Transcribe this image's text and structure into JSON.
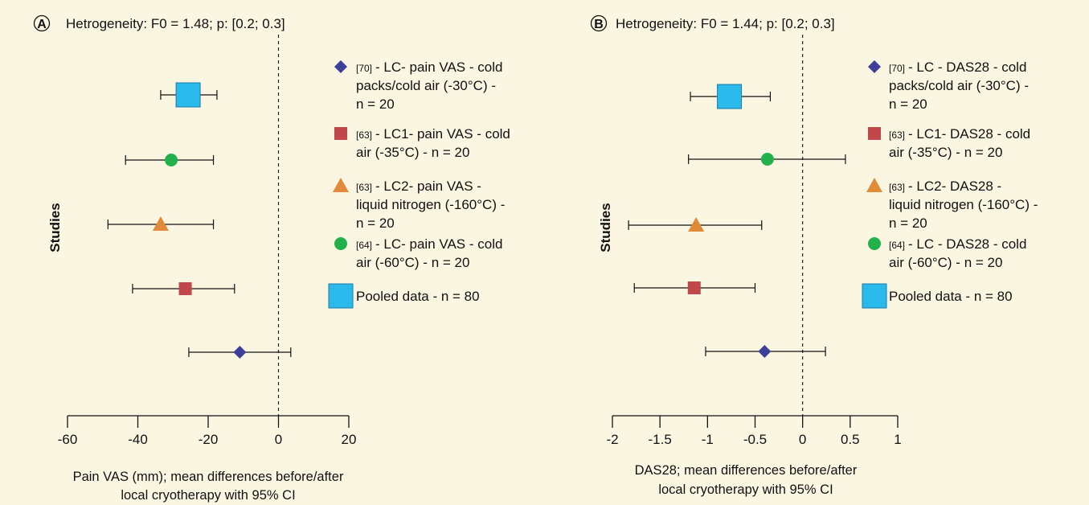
{
  "chart_data": [
    {
      "type": "scatter",
      "panel_label": "A",
      "heterogeneity": "Hetrogeneity: F0 = 1.48; p: [0.2; 0.3]",
      "ylabel": "Studies",
      "xlabel": [
        "Pain VAS (mm); mean differences before/after",
        "local cryotherapy with 95% CI"
      ],
      "xlim": [
        -60,
        20
      ],
      "xticks": [
        -60,
        -40,
        -20,
        0,
        20
      ],
      "reference_line": 0,
      "rows": [
        {
          "key": "pooled",
          "marker": "square",
          "color": "#29b9ea",
          "mean": -25.7,
          "ci": [
            -33.5,
            -17.5
          ]
        },
        {
          "key": "s64",
          "marker": "circle",
          "color": "#22b04b",
          "mean": -30.5,
          "ci": [
            -43.5,
            -18.5
          ]
        },
        {
          "key": "s63b",
          "marker": "triangle",
          "color": "#e08a3a",
          "mean": -33.5,
          "ci": [
            -48.5,
            -18.5
          ]
        },
        {
          "key": "s63a",
          "marker": "square-small",
          "color": "#c0474a",
          "mean": -26.5,
          "ci": [
            -41.5,
            -12.5
          ]
        },
        {
          "key": "s70",
          "marker": "diamond",
          "color": "#3b3f99",
          "mean": -11.0,
          "ci": [
            -25.5,
            3.5
          ]
        }
      ],
      "legend": [
        {
          "marker": "diamond",
          "color": "#3b3f99",
          "ref": "[70]",
          "lines": [
            "- LC- pain VAS - cold",
            "packs/cold air (-30°C) -",
            "n = 20"
          ]
        },
        {
          "marker": "square-small",
          "color": "#c0474a",
          "ref": "[63]",
          "lines": [
            "- LC1- pain VAS - cold",
            "air (-35°C) - n = 20"
          ]
        },
        {
          "marker": "triangle",
          "color": "#e08a3a",
          "ref": "[63]",
          "lines": [
            "- LC2- pain VAS -",
            "liquid nitrogen (-160°C) -",
            "n = 20"
          ]
        },
        {
          "marker": "circle",
          "color": "#22b04b",
          "ref": "[64]",
          "lines": [
            "- LC- pain VAS - cold",
            "air (-60°C) - n = 20"
          ]
        },
        {
          "marker": "square",
          "color": "#29b9ea",
          "ref": "",
          "lines": [
            "Pooled data - n = 80"
          ]
        }
      ]
    },
    {
      "type": "scatter",
      "panel_label": "B",
      "heterogeneity": "Hetrogeneity: F0 = 1.44; p: [0.2; 0.3]",
      "ylabel": "Studies",
      "xlabel": [
        "DAS28; mean differences before/after",
        "local cryotherapy with 95% CI"
      ],
      "xlim": [
        -2,
        1
      ],
      "xticks": [
        -2,
        -1.5,
        -1,
        -0.5,
        0,
        0.5,
        1
      ],
      "reference_line": 0,
      "rows": [
        {
          "key": "pooled",
          "marker": "square",
          "color": "#29b9ea",
          "mean": -0.77,
          "ci": [
            -1.18,
            -0.34
          ]
        },
        {
          "key": "s64",
          "marker": "circle",
          "color": "#22b04b",
          "mean": -0.37,
          "ci": [
            -1.2,
            0.45
          ]
        },
        {
          "key": "s63b",
          "marker": "triangle",
          "color": "#e08a3a",
          "mean": -1.12,
          "ci": [
            -1.83,
            -0.43
          ]
        },
        {
          "key": "s63a",
          "marker": "square-small",
          "color": "#c0474a",
          "mean": -1.14,
          "ci": [
            -1.77,
            -0.5
          ]
        },
        {
          "key": "s70",
          "marker": "diamond",
          "color": "#3b3f99",
          "mean": -0.4,
          "ci": [
            -1.02,
            0.24
          ]
        }
      ],
      "legend": [
        {
          "marker": "diamond",
          "color": "#3b3f99",
          "ref": "[70]",
          "lines": [
            "- LC - DAS28 - cold",
            "packs/cold air (-30°C) -",
            "n = 20"
          ]
        },
        {
          "marker": "square-small",
          "color": "#c0474a",
          "ref": "[63]",
          "lines": [
            "- LC1- DAS28 - cold",
            "air (-35°C) - n = 20"
          ]
        },
        {
          "marker": "triangle",
          "color": "#e08a3a",
          "ref": "[63]",
          "lines": [
            "- LC2- DAS28 -",
            "liquid nitrogen (-160°C) -",
            "n = 20"
          ]
        },
        {
          "marker": "circle",
          "color": "#22b04b",
          "ref": "[64]",
          "lines": [
            "- LC - DAS28 - cold",
            "air (-60°C) - n = 20"
          ]
        },
        {
          "marker": "square",
          "color": "#29b9ea",
          "ref": "",
          "lines": [
            "Pooled data - n = 80"
          ]
        }
      ]
    }
  ]
}
